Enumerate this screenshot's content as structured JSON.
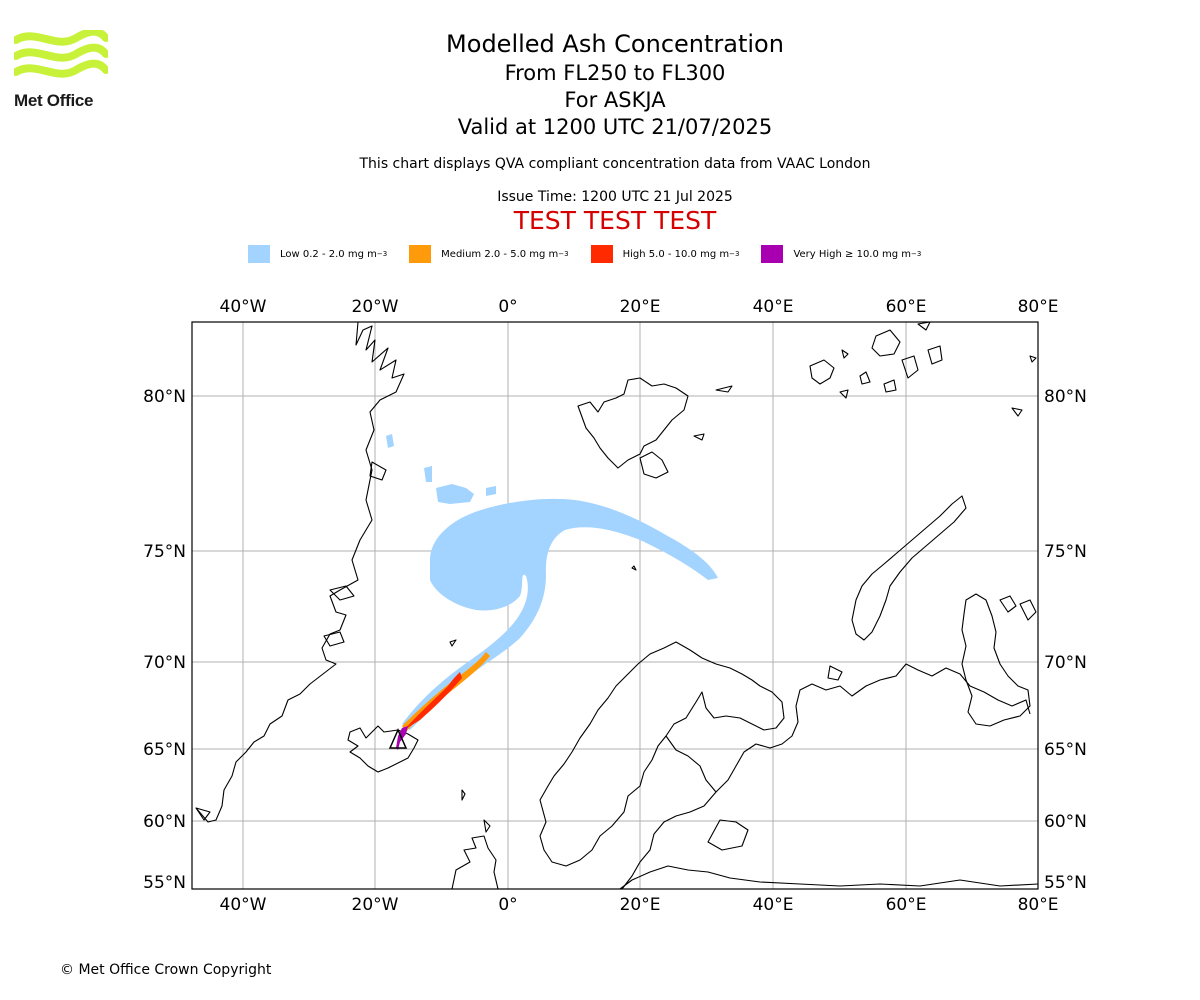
{
  "header": {
    "logo_text": "Met Office",
    "title": "Modelled Ash Concentration",
    "level_range": "From FL250 to FL300",
    "volcano": "For ASKJA",
    "valid_time": "Valid at 1200 UTC 21/07/2025",
    "description": "This chart displays QVA compliant concentration data from VAAC London",
    "issue_time": "Issue Time: 1200 UTC 21 Jul 2025",
    "test_banner": "TEST TEST TEST"
  },
  "legend": [
    {
      "label": "Low 0.2 - 2.0 mg m",
      "unit_sup": "−3",
      "color": "#a3d4ff"
    },
    {
      "label": "Medium 2.0 - 5.0 mg m",
      "unit_sup": "−3",
      "color": "#ff9a0a"
    },
    {
      "label": "High 5.0 - 10.0 mg m",
      "unit_sup": "−3",
      "color": "#ff2a00"
    },
    {
      "label": "Very High  ≥  10.0 mg m",
      "unit_sup": "−3",
      "color": "#a800b0"
    }
  ],
  "map": {
    "longitude_labels": [
      "40°W",
      "20°W",
      "0°",
      "20°E",
      "40°E",
      "60°E",
      "80°E"
    ],
    "latitude_labels": [
      "80°N",
      "75°N",
      "70°N",
      "65°N",
      "60°N",
      "55°N"
    ],
    "gridlines": true,
    "frame_color": "#000000",
    "grid_color": "#b0b0b0"
  },
  "footer": {
    "copyright": "© Met Office Crown Copyright"
  }
}
